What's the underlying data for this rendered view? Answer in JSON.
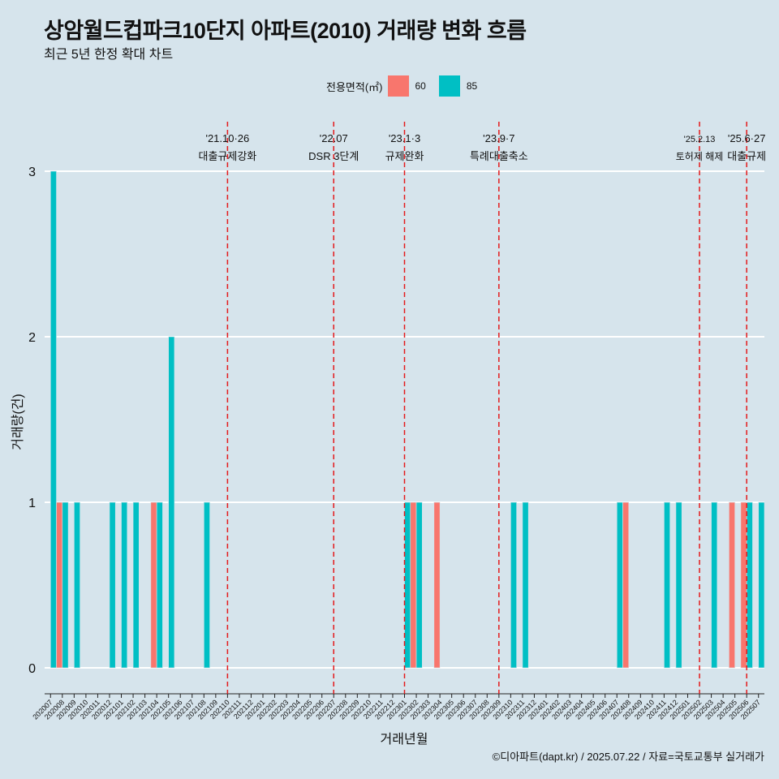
{
  "chart_data": {
    "type": "bar",
    "title": "상암월드컵파크10단지 아파트(2010) 거래량 변화 흐름",
    "subtitle": "최근 5년 한정 확대 차트",
    "xlabel": "거래년월",
    "ylabel": "거래량(건)",
    "ylim": [
      0,
      3
    ],
    "yticks": [
      0,
      1,
      2,
      3
    ],
    "legend_title": "전용면적(㎡)",
    "legend_position": "top-center",
    "grid": true,
    "categories": [
      "202007",
      "202008",
      "202009",
      "202010",
      "202011",
      "202012",
      "202101",
      "202102",
      "202103",
      "202104",
      "202105",
      "202106",
      "202107",
      "202108",
      "202109",
      "202110",
      "202111",
      "202112",
      "202201",
      "202202",
      "202203",
      "202204",
      "202205",
      "202206",
      "202207",
      "202208",
      "202209",
      "202210",
      "202211",
      "202212",
      "202301",
      "202302",
      "202303",
      "202304",
      "202305",
      "202306",
      "202307",
      "202308",
      "202309",
      "202310",
      "202311",
      "202312",
      "202401",
      "202402",
      "202403",
      "202404",
      "202405",
      "202406",
      "202407",
      "202408",
      "202409",
      "202410",
      "202411",
      "202412",
      "202501",
      "202502",
      "202503",
      "202504",
      "202505",
      "202506",
      "202507"
    ],
    "series": [
      {
        "name": "60",
        "color": "#f8766d",
        "values": [
          0,
          1,
          0,
          0,
          0,
          0,
          0,
          0,
          0,
          1,
          0,
          0,
          0,
          0,
          0,
          0,
          0,
          0,
          0,
          0,
          0,
          0,
          0,
          0,
          0,
          0,
          0,
          0,
          0,
          0,
          0,
          1,
          0,
          1,
          0,
          0,
          0,
          0,
          0,
          0,
          0,
          0,
          0,
          0,
          0,
          0,
          0,
          0,
          0,
          1,
          0,
          0,
          0,
          0,
          0,
          0,
          0,
          0,
          1,
          1,
          0
        ]
      },
      {
        "name": "85",
        "color": "#00bfc4",
        "values": [
          3,
          1,
          1,
          0,
          0,
          1,
          1,
          1,
          0,
          1,
          2,
          0,
          0,
          1,
          0,
          0,
          0,
          0,
          0,
          0,
          0,
          0,
          0,
          0,
          0,
          0,
          0,
          0,
          0,
          0,
          1,
          1,
          0,
          0,
          0,
          0,
          0,
          0,
          0,
          1,
          1,
          0,
          0,
          0,
          0,
          0,
          0,
          0,
          1,
          0,
          0,
          0,
          1,
          1,
          0,
          0,
          1,
          0,
          0,
          1,
          1
        ]
      }
    ],
    "events": [
      {
        "date": "'21.10·26",
        "label": "대출규제강화",
        "category": "202110"
      },
      {
        "date": "'22.07",
        "label": "DSR 3단계",
        "category": "202207"
      },
      {
        "date": "'23.1·3",
        "label": "규제완화",
        "category": "202301"
      },
      {
        "date": "'23.9·7",
        "label": "특례대출축소",
        "category": "202309"
      },
      {
        "date": "'25.2.13",
        "label": "토허제 해제",
        "category": "202502"
      },
      {
        "date": "'25.6·27",
        "label": "대출규제",
        "category": "202506"
      }
    ],
    "caption": "©디아파트(dapt.kr) / 2025.07.22 / 자료=국토교통부 실거래가"
  }
}
